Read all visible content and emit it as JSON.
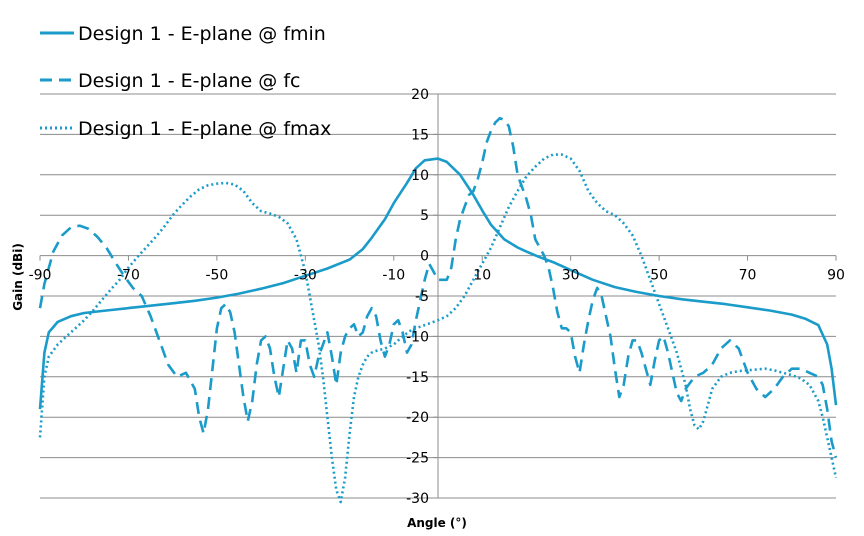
{
  "chart_data": {
    "type": "line",
    "title": "",
    "xlabel": "Angle (°)",
    "ylabel": "Gain (dBi)",
    "xlim": [
      -90,
      90
    ],
    "ylim": [
      -30,
      20
    ],
    "xticks": [
      -90,
      -70,
      -50,
      -30,
      -10,
      10,
      30,
      50,
      70,
      90
    ],
    "yticks": [
      20,
      15,
      10,
      5,
      0,
      -5,
      -10,
      -15,
      -20,
      -25,
      -30
    ],
    "xtick_labels": [
      "-90",
      "-70",
      "-50",
      "-30",
      "-10",
      "10",
      "30",
      "50",
      "70",
      "90"
    ],
    "ytick_labels": [
      "20",
      "15",
      "10",
      "5",
      "0",
      "-5",
      "-10",
      "-15",
      "-20",
      "-25",
      "-30"
    ],
    "grid": "horizontal",
    "legend_position": "top-left",
    "color": "#1A9BC9",
    "series": [
      {
        "name": "Design 1 - E-plane @ fmin",
        "style": "solid",
        "points": [
          [
            -90,
            -19
          ],
          [
            -89,
            -12
          ],
          [
            -88,
            -9.5
          ],
          [
            -86,
            -8.2
          ],
          [
            -83,
            -7.5
          ],
          [
            -80,
            -7.1
          ],
          [
            -75,
            -6.8
          ],
          [
            -70,
            -6.5
          ],
          [
            -65,
            -6.2
          ],
          [
            -60,
            -5.9
          ],
          [
            -55,
            -5.6
          ],
          [
            -50,
            -5.2
          ],
          [
            -45,
            -4.7
          ],
          [
            -40,
            -4.1
          ],
          [
            -35,
            -3.4
          ],
          [
            -30,
            -2.5
          ],
          [
            -25,
            -1.6
          ],
          [
            -20,
            -0.5
          ],
          [
            -17,
            0.8
          ],
          [
            -15,
            2.2
          ],
          [
            -12,
            4.5
          ],
          [
            -10,
            6.5
          ],
          [
            -7,
            9.0
          ],
          [
            -5,
            10.8
          ],
          [
            -3,
            11.8
          ],
          [
            0,
            12.0
          ],
          [
            2,
            11.6
          ],
          [
            5,
            10.0
          ],
          [
            8,
            7.5
          ],
          [
            10,
            5.6
          ],
          [
            12,
            3.8
          ],
          [
            15,
            2.0
          ],
          [
            18,
            1.0
          ],
          [
            20,
            0.5
          ],
          [
            23,
            -0.2
          ],
          [
            26,
            -0.8
          ],
          [
            30,
            -1.8
          ],
          [
            35,
            -3.0
          ],
          [
            40,
            -3.9
          ],
          [
            45,
            -4.5
          ],
          [
            50,
            -5.0
          ],
          [
            55,
            -5.4
          ],
          [
            60,
            -5.7
          ],
          [
            65,
            -6.0
          ],
          [
            70,
            -6.4
          ],
          [
            75,
            -6.8
          ],
          [
            80,
            -7.3
          ],
          [
            83,
            -7.8
          ],
          [
            86,
            -8.6
          ],
          [
            88,
            -11.0
          ],
          [
            89,
            -14.0
          ],
          [
            90,
            -18.5
          ]
        ]
      },
      {
        "name": "Design 1 - E-plane @ fc",
        "style": "dashed",
        "points": [
          [
            -90,
            -6.5
          ],
          [
            -89,
            -3.5
          ],
          [
            -87,
            0.5
          ],
          [
            -85,
            2.5
          ],
          [
            -83,
            3.5
          ],
          [
            -81,
            3.7
          ],
          [
            -79,
            3.3
          ],
          [
            -77,
            2.3
          ],
          [
            -75,
            1.0
          ],
          [
            -73,
            -0.8
          ],
          [
            -71,
            -2.5
          ],
          [
            -69,
            -4.0
          ],
          [
            -67,
            -5.0
          ],
          [
            -65,
            -7.5
          ],
          [
            -63,
            -10.5
          ],
          [
            -61,
            -13.5
          ],
          [
            -59,
            -15.0
          ],
          [
            -57,
            -14.5
          ],
          [
            -55,
            -16.5
          ],
          [
            -54,
            -20.0
          ],
          [
            -53,
            -22.0
          ],
          [
            -52,
            -19.0
          ],
          [
            -51,
            -14.0
          ],
          [
            -50,
            -9.0
          ],
          [
            -49,
            -6.5
          ],
          [
            -48,
            -6.0
          ],
          [
            -47,
            -7.0
          ],
          [
            -46,
            -9.5
          ],
          [
            -45,
            -13.5
          ],
          [
            -44,
            -17.5
          ],
          [
            -43,
            -20.5
          ],
          [
            -42,
            -18.0
          ],
          [
            -41,
            -13.5
          ],
          [
            -40,
            -10.5
          ],
          [
            -39,
            -10.0
          ],
          [
            -38,
            -11.5
          ],
          [
            -37,
            -15.0
          ],
          [
            -36,
            -17.5
          ],
          [
            -35,
            -14.0
          ],
          [
            -34,
            -10.5
          ],
          [
            -33,
            -11.5
          ],
          [
            -32,
            -14.5
          ],
          [
            -31,
            -10.5
          ],
          [
            -30,
            -10.5
          ],
          [
            -29,
            -13.5
          ],
          [
            -28,
            -15.0
          ],
          [
            -27,
            -12.5
          ],
          [
            -25,
            -9.5
          ],
          [
            -24,
            -12.5
          ],
          [
            -23,
            -16.0
          ],
          [
            -22,
            -12.0
          ],
          [
            -21,
            -10.0
          ],
          [
            -20,
            -9.0
          ],
          [
            -19,
            -8.5
          ],
          [
            -18,
            -10.0
          ],
          [
            -17,
            -9.5
          ],
          [
            -16,
            -7.5
          ],
          [
            -15,
            -6.5
          ],
          [
            -14,
            -7.5
          ],
          [
            -13,
            -10.5
          ],
          [
            -12,
            -12.5
          ],
          [
            -11,
            -11.0
          ],
          [
            -10,
            -8.5
          ],
          [
            -9,
            -8.0
          ],
          [
            -8,
            -9.5
          ],
          [
            -7,
            -12.0
          ],
          [
            -6,
            -11.0
          ],
          [
            -5,
            -8.0
          ],
          [
            -4,
            -5.5
          ],
          [
            -3,
            -3.0
          ],
          [
            -2,
            -1.0
          ],
          [
            -1,
            -2.0
          ],
          [
            0,
            -3.0
          ],
          [
            1,
            -3.0
          ],
          [
            2,
            -3.0
          ],
          [
            3,
            -1.5
          ],
          [
            4,
            2.0
          ],
          [
            5,
            4.5
          ],
          [
            6,
            6.0
          ],
          [
            7,
            7.5
          ],
          [
            8,
            8.0
          ],
          [
            9,
            9.5
          ],
          [
            10,
            11.5
          ],
          [
            11,
            14.0
          ],
          [
            12,
            15.5
          ],
          [
            13,
            16.5
          ],
          [
            14,
            17.0
          ],
          [
            15,
            16.8
          ],
          [
            16,
            16.0
          ],
          [
            17,
            13.5
          ],
          [
            18,
            10.0
          ],
          [
            19,
            8.5
          ],
          [
            20,
            7.0
          ],
          [
            21,
            5.0
          ],
          [
            22,
            2.0
          ],
          [
            23,
            1.0
          ],
          [
            24,
            0.0
          ],
          [
            25,
            -1.5
          ],
          [
            26,
            -4.0
          ],
          [
            27,
            -7.0
          ],
          [
            28,
            -9.0
          ],
          [
            29,
            -9.0
          ],
          [
            30,
            -9.5
          ],
          [
            31,
            -12.5
          ],
          [
            32,
            -14.5
          ],
          [
            33,
            -11.0
          ],
          [
            34,
            -8.0
          ],
          [
            35,
            -5.5
          ],
          [
            36,
            -4.0
          ],
          [
            37,
            -5.0
          ],
          [
            38,
            -7.5
          ],
          [
            39,
            -10.0
          ],
          [
            40,
            -14.0
          ],
          [
            41,
            -17.5
          ],
          [
            42,
            -16.0
          ],
          [
            43,
            -12.5
          ],
          [
            44,
            -10.5
          ],
          [
            45,
            -10.5
          ],
          [
            46,
            -12.0
          ],
          [
            47,
            -14.0
          ],
          [
            48,
            -16.0
          ],
          [
            49,
            -13.0
          ],
          [
            50,
            -10.5
          ],
          [
            51,
            -10.0
          ],
          [
            52,
            -12.0
          ],
          [
            53,
            -14.5
          ],
          [
            54,
            -17.0
          ],
          [
            55,
            -18.0
          ],
          [
            56,
            -16.5
          ],
          [
            58,
            -15.0
          ],
          [
            60,
            -14.5
          ],
          [
            62,
            -13.5
          ],
          [
            64,
            -11.5
          ],
          [
            66,
            -10.5
          ],
          [
            68,
            -11.5
          ],
          [
            70,
            -14.5
          ],
          [
            72,
            -16.5
          ],
          [
            74,
            -17.5
          ],
          [
            76,
            -16.5
          ],
          [
            78,
            -15.0
          ],
          [
            80,
            -14.0
          ],
          [
            82,
            -14.0
          ],
          [
            84,
            -14.5
          ],
          [
            86,
            -15.0
          ],
          [
            87,
            -16.0
          ],
          [
            88,
            -19.0
          ],
          [
            89,
            -23.0
          ],
          [
            90,
            -25.0
          ]
        ]
      },
      {
        "name": "Design 1 - E-plane @ fmax",
        "style": "dotted",
        "points": [
          [
            -90,
            -22.5
          ],
          [
            -89,
            -15.0
          ],
          [
            -88,
            -12.5
          ],
          [
            -86,
            -11.0
          ],
          [
            -84,
            -10.0
          ],
          [
            -82,
            -9.0
          ],
          [
            -80,
            -8.0
          ],
          [
            -78,
            -6.8
          ],
          [
            -76,
            -5.5
          ],
          [
            -74,
            -4.2
          ],
          [
            -72,
            -3.0
          ],
          [
            -70,
            -1.5
          ],
          [
            -68,
            -0.2
          ],
          [
            -66,
            1.0
          ],
          [
            -64,
            2.2
          ],
          [
            -62,
            3.5
          ],
          [
            -60,
            5.0
          ],
          [
            -58,
            6.2
          ],
          [
            -56,
            7.3
          ],
          [
            -54,
            8.2
          ],
          [
            -52,
            8.7
          ],
          [
            -50,
            8.9
          ],
          [
            -48,
            9.0
          ],
          [
            -46,
            8.8
          ],
          [
            -44,
            8.0
          ],
          [
            -42,
            6.5
          ],
          [
            -40,
            5.5
          ],
          [
            -38,
            5.2
          ],
          [
            -36,
            4.8
          ],
          [
            -34,
            4.0
          ],
          [
            -32,
            2.0
          ],
          [
            -31,
            0.0
          ],
          [
            -30,
            -2.0
          ],
          [
            -29,
            -5.0
          ],
          [
            -28,
            -8.0
          ],
          [
            -27,
            -11.0
          ],
          [
            -26,
            -15.0
          ],
          [
            -25,
            -20.0
          ],
          [
            -24,
            -25.0
          ],
          [
            -23,
            -29.0
          ],
          [
            -22,
            -30.5
          ],
          [
            -21,
            -27.5
          ],
          [
            -20,
            -22.0
          ],
          [
            -19,
            -17.5
          ],
          [
            -18,
            -15.0
          ],
          [
            -17,
            -13.5
          ],
          [
            -16,
            -12.5
          ],
          [
            -15,
            -12.0
          ],
          [
            -14,
            -11.8
          ],
          [
            -12,
            -11.5
          ],
          [
            -10,
            -11.0
          ],
          [
            -8,
            -10.0
          ],
          [
            -6,
            -9.2
          ],
          [
            -4,
            -8.8
          ],
          [
            -2,
            -8.4
          ],
          [
            0,
            -8.0
          ],
          [
            2,
            -7.5
          ],
          [
            4,
            -6.5
          ],
          [
            6,
            -5.0
          ],
          [
            8,
            -3.0
          ],
          [
            10,
            -1.0
          ],
          [
            12,
            1.0
          ],
          [
            14,
            3.5
          ],
          [
            16,
            6.0
          ],
          [
            18,
            8.0
          ],
          [
            20,
            9.8
          ],
          [
            22,
            11.0
          ],
          [
            24,
            12.0
          ],
          [
            26,
            12.5
          ],
          [
            28,
            12.5
          ],
          [
            30,
            12.0
          ],
          [
            32,
            10.5
          ],
          [
            34,
            8.0
          ],
          [
            36,
            6.5
          ],
          [
            38,
            5.5
          ],
          [
            40,
            5.0
          ],
          [
            42,
            4.0
          ],
          [
            44,
            2.5
          ],
          [
            46,
            0.0
          ],
          [
            48,
            -3.0
          ],
          [
            50,
            -6.0
          ],
          [
            52,
            -9.0
          ],
          [
            54,
            -12.0
          ],
          [
            56,
            -16.0
          ],
          [
            57,
            -19.0
          ],
          [
            58,
            -21.0
          ],
          [
            59,
            -21.5
          ],
          [
            60,
            -20.5
          ],
          [
            61,
            -18.5
          ],
          [
            62,
            -16.5
          ],
          [
            64,
            -15.0
          ],
          [
            66,
            -14.5
          ],
          [
            68,
            -14.3
          ],
          [
            70,
            -14.2
          ],
          [
            72,
            -14.1
          ],
          [
            74,
            -14.0
          ],
          [
            76,
            -14.2
          ],
          [
            78,
            -14.5
          ],
          [
            80,
            -14.8
          ],
          [
            82,
            -15.2
          ],
          [
            84,
            -16.0
          ],
          [
            85,
            -17.0
          ],
          [
            86,
            -18.0
          ],
          [
            87,
            -20.0
          ],
          [
            88,
            -22.5
          ],
          [
            89,
            -25.0
          ],
          [
            90,
            -27.5
          ]
        ]
      }
    ]
  }
}
